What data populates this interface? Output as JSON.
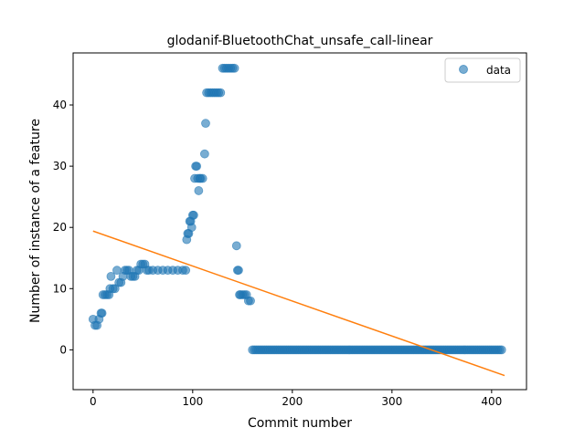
{
  "chart_data": {
    "type": "scatter",
    "title": "glodanif-BluetoothChat_unsafe_call-linear",
    "xlabel": "Commit number",
    "ylabel": "Number of instance of a feature",
    "xlim": [
      -20,
      435
    ],
    "ylim": [
      -6.5,
      48.5
    ],
    "xticks": [
      0,
      100,
      200,
      300,
      400
    ],
    "yticks": [
      0,
      10,
      20,
      30,
      40
    ],
    "grid": false,
    "legend": {
      "placement": "top-right",
      "entries": [
        "data"
      ]
    },
    "colors": {
      "data": "#1f77b4",
      "fit": "#ff7f0e"
    },
    "series": [
      {
        "name": "data",
        "points": [
          [
            0,
            5
          ],
          [
            2,
            4
          ],
          [
            4,
            4
          ],
          [
            6,
            5
          ],
          [
            8,
            6
          ],
          [
            9,
            6
          ],
          [
            10,
            9
          ],
          [
            12,
            9
          ],
          [
            14,
            9
          ],
          [
            16,
            9
          ],
          [
            17,
            10
          ],
          [
            18,
            12
          ],
          [
            20,
            10
          ],
          [
            22,
            10
          ],
          [
            24,
            13
          ],
          [
            26,
            11
          ],
          [
            28,
            11
          ],
          [
            30,
            12
          ],
          [
            32,
            13
          ],
          [
            34,
            13
          ],
          [
            36,
            13
          ],
          [
            38,
            12
          ],
          [
            40,
            12
          ],
          [
            42,
            12
          ],
          [
            44,
            13
          ],
          [
            46,
            13
          ],
          [
            48,
            14
          ],
          [
            50,
            14
          ],
          [
            52,
            14
          ],
          [
            54,
            13
          ],
          [
            56,
            13
          ],
          [
            60,
            13
          ],
          [
            65,
            13
          ],
          [
            70,
            13
          ],
          [
            75,
            13
          ],
          [
            80,
            13
          ],
          [
            85,
            13
          ],
          [
            90,
            13
          ],
          [
            93,
            13
          ],
          [
            94,
            18
          ],
          [
            95,
            19
          ],
          [
            96,
            19
          ],
          [
            97,
            21
          ],
          [
            98,
            21
          ],
          [
            99,
            20
          ],
          [
            100,
            22
          ],
          [
            101,
            22
          ],
          [
            102,
            28
          ],
          [
            103,
            30
          ],
          [
            104,
            30
          ],
          [
            105,
            28
          ],
          [
            106,
            26
          ],
          [
            107,
            28
          ],
          [
            108,
            28
          ],
          [
            110,
            28
          ],
          [
            112,
            32
          ],
          [
            113,
            37
          ],
          [
            114,
            42
          ],
          [
            116,
            42
          ],
          [
            118,
            42
          ],
          [
            120,
            42
          ],
          [
            122,
            42
          ],
          [
            124,
            42
          ],
          [
            126,
            42
          ],
          [
            128,
            42
          ],
          [
            130,
            46
          ],
          [
            132,
            46
          ],
          [
            134,
            46
          ],
          [
            136,
            46
          ],
          [
            138,
            46
          ],
          [
            140,
            46
          ],
          [
            142,
            46
          ],
          [
            144,
            17
          ],
          [
            145,
            13
          ],
          [
            146,
            13
          ],
          [
            147,
            9
          ],
          [
            148,
            9
          ],
          [
            150,
            9
          ],
          [
            152,
            9
          ],
          [
            154,
            9
          ],
          [
            156,
            8
          ],
          [
            158,
            8
          ],
          [
            160,
            0
          ],
          [
            410,
            0
          ]
        ]
      },
      {
        "name": "",
        "kind": "line",
        "points": [
          [
            0,
            19.4
          ],
          [
            413,
            -4.2
          ]
        ]
      }
    ]
  }
}
